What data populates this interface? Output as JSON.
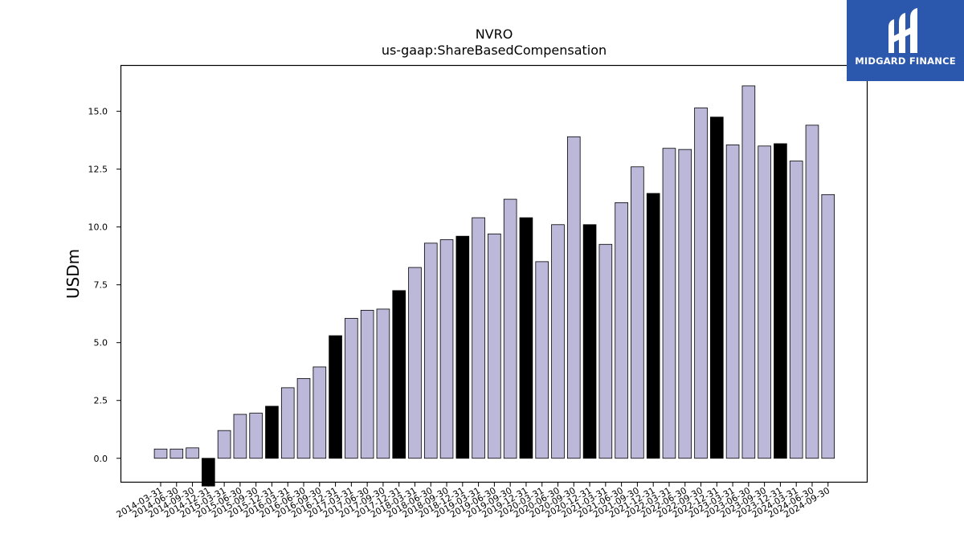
{
  "brand": {
    "name": "MIDGARD FINANCE"
  },
  "colors": {
    "bar_default": "#bcb8d9",
    "bar_q4": "#000000",
    "brand_bg": "#2b57ad"
  },
  "chart_data": {
    "type": "bar",
    "title": "NVRO",
    "subtitle": "us-gaap:ShareBasedCompensation",
    "xlabel": "",
    "ylabel": "USDm",
    "ylim": [
      -1.05,
      17.0
    ],
    "yticks": [
      "0.0",
      "2.5",
      "5.0",
      "7.5",
      "10.0",
      "12.5",
      "15.0"
    ],
    "grid": false,
    "categories": [
      "2014-03-31",
      "2014-06-30",
      "2014-09-30",
      "2014-12-31",
      "2015-03-31",
      "2015-06-30",
      "2015-09-30",
      "2015-12-31",
      "2016-03-31",
      "2016-06-30",
      "2016-09-30",
      "2016-12-31",
      "2017-03-31",
      "2017-06-30",
      "2017-09-30",
      "2017-12-31",
      "2018-03-31",
      "2018-06-30",
      "2018-09-30",
      "2018-12-31",
      "2019-03-31",
      "2019-06-30",
      "2019-09-30",
      "2019-12-31",
      "2020-03-31",
      "2020-06-30",
      "2020-09-30",
      "2020-12-31",
      "2021-03-31",
      "2021-06-30",
      "2021-09-30",
      "2021-12-31",
      "2022-03-31",
      "2022-06-30",
      "2022-09-30",
      "2022-12-31",
      "2023-03-31",
      "2023-06-30",
      "2023-09-30",
      "2023-12-31",
      "2024-03-31",
      "2024-06-30",
      "2024-09-30"
    ],
    "values": [
      0.4,
      0.4,
      0.45,
      -1.2,
      1.2,
      1.9,
      1.95,
      2.25,
      3.05,
      3.45,
      3.95,
      5.3,
      6.05,
      6.4,
      6.45,
      7.25,
      8.25,
      9.3,
      9.45,
      9.6,
      10.4,
      9.7,
      11.2,
      10.4,
      8.5,
      10.1,
      13.9,
      10.1,
      9.25,
      11.05,
      12.6,
      11.45,
      13.4,
      13.35,
      15.15,
      14.75,
      13.55,
      16.1,
      13.5,
      13.6,
      12.85,
      14.4,
      11.4
    ],
    "highlight": "December quarter bars drawn in black"
  }
}
